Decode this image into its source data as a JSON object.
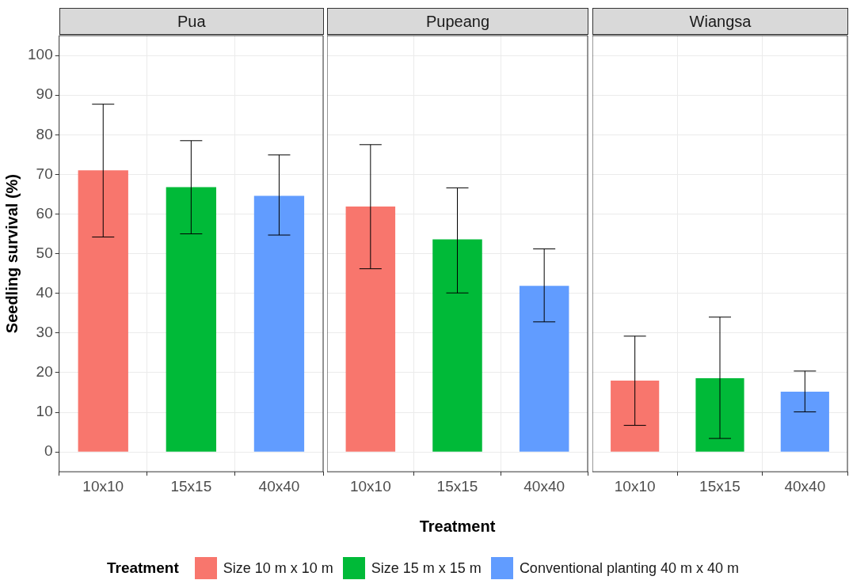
{
  "chart_data": [
    {
      "type": "bar",
      "title": "Pua",
      "ylabel": "Seedling survival (%)",
      "categories": [
        "10x10",
        "15x15",
        "40x40"
      ],
      "legend_title": "Treatment",
      "legend": "bottom",
      "grid": true,
      "ylim": [
        -5,
        105
      ],
      "yticks": [
        0,
        10,
        20,
        30,
        40,
        50,
        60,
        70,
        80,
        90,
        100
      ],
      "series": [
        {
          "name": "Size 10 m x 10 m",
          "color": "#f8766d",
          "values": [
            71,
            null,
            null
          ],
          "errors": [
            [
              54.2,
              87.7
            ],
            null,
            null
          ]
        },
        {
          "name": "Size 15 m x 15 m",
          "color": "#00ba38",
          "values": [
            null,
            66.8,
            null
          ],
          "errors": [
            null,
            [
              55,
              78.5
            ],
            null
          ]
        },
        {
          "name": "Conventional planting 40 m x 40 m",
          "color": "#619cff",
          "values": [
            null,
            null,
            64.6
          ],
          "errors": [
            null,
            null,
            [
              54.7,
              74.9
            ]
          ]
        }
      ]
    },
    {
      "type": "bar",
      "title": "Pupeang",
      "xlabel": "Treatment",
      "categories": [
        "10x10",
        "15x15",
        "40x40"
      ],
      "grid": true,
      "tick_labels": "x",
      "ylim": [
        -5,
        105
      ],
      "yticks": [
        0,
        10,
        20,
        30,
        40,
        50,
        60,
        70,
        80,
        90,
        100
      ],
      "series": [
        {
          "color": "#f8766d",
          "values": [
            61.9,
            null,
            null
          ],
          "errors": [
            [
              46.2,
              77.5
            ],
            null,
            null
          ]
        },
        {
          "color": "#00ba38",
          "values": [
            null,
            53.6,
            null
          ],
          "errors": [
            null,
            [
              40.1,
              66.6
            ],
            null
          ]
        },
        {
          "color": "#619cff",
          "values": [
            null,
            null,
            41.9
          ],
          "errors": [
            null,
            null,
            [
              32.8,
              51.2
            ]
          ]
        }
      ]
    },
    {
      "type": "bar",
      "title": "Wiangsa",
      "categories": [
        "10x10",
        "15x15",
        "40x40"
      ],
      "grid": true,
      "tick_labels": "x",
      "ylim": [
        -5,
        105
      ],
      "yticks": [
        0,
        10,
        20,
        30,
        40,
        50,
        60,
        70,
        80,
        90,
        100
      ],
      "series": [
        {
          "color": "#f8766d",
          "values": [
            18,
            null,
            null
          ],
          "errors": [
            [
              6.7,
              29.2
            ],
            null,
            null
          ]
        },
        {
          "color": "#00ba38",
          "values": [
            null,
            18.6,
            null
          ],
          "errors": [
            null,
            [
              3.4,
              34
            ],
            null
          ]
        },
        {
          "color": "#619cff",
          "values": [
            null,
            null,
            15.2
          ],
          "errors": [
            null,
            null,
            [
              10.1,
              20.4
            ]
          ]
        }
      ]
    }
  ]
}
